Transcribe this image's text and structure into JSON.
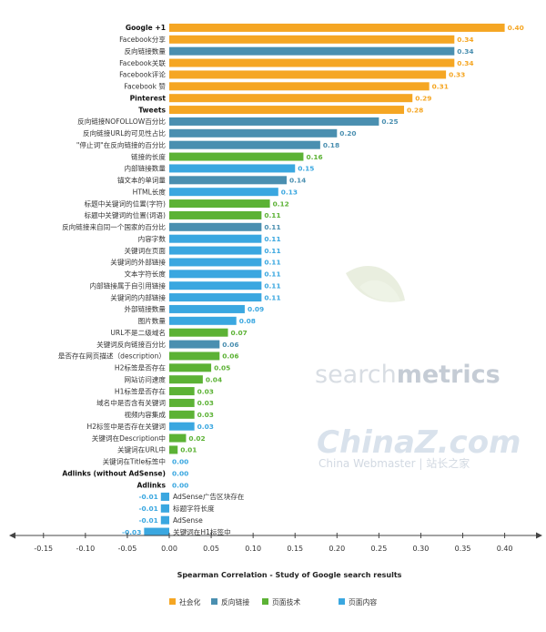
{
  "chart_data": {
    "type": "bar",
    "orientation": "horizontal",
    "title": "",
    "xlabel": "Spearman Correlation - Study of Google search results",
    "ylabel": "",
    "xlim": [
      -0.18,
      0.45
    ],
    "xticks": [
      -0.15,
      -0.1,
      -0.05,
      0.0,
      0.05,
      0.1,
      0.15,
      0.2,
      0.25,
      0.3,
      0.35,
      0.4
    ],
    "xtick_labels": [
      "-0.15",
      "-0.10",
      "-0.05",
      "0.00",
      "0.05",
      "0.10",
      "0.15",
      "0.20",
      "0.25",
      "0.30",
      "0.35",
      "0.40"
    ],
    "grid": false,
    "legend_position": "bottom",
    "series": [
      {
        "name": "社会化",
        "color": "#f5a623"
      },
      {
        "name": "反向链接",
        "color": "#4a8fb0"
      },
      {
        "name": "页面技术",
        "color": "#5cb235"
      },
      {
        "name": "页面内容",
        "color": "#3aa7e0"
      }
    ],
    "bars": [
      {
        "category": "Google +1",
        "value": 0.4,
        "label": "0.40",
        "series": 0,
        "bold": true
      },
      {
        "category": "Facebook分享",
        "value": 0.34,
        "label": "0.34",
        "series": 0
      },
      {
        "category": "反向链接数量",
        "value": 0.34,
        "label": "0.34",
        "series": 1
      },
      {
        "category": "Facebook关联",
        "value": 0.34,
        "label": "0.34",
        "series": 0
      },
      {
        "category": "Facebook评论",
        "value": 0.33,
        "label": "0.33",
        "series": 0
      },
      {
        "category": "Facebook 赞",
        "value": 0.31,
        "label": "0.31",
        "series": 0
      },
      {
        "category": "Pinterest",
        "value": 0.29,
        "label": "0.29",
        "series": 0,
        "bold": true
      },
      {
        "category": "Tweets",
        "value": 0.28,
        "label": "0.28",
        "series": 0,
        "bold": true
      },
      {
        "category": "反向链接NOFOLLOW百分比",
        "value": 0.25,
        "label": "0.25",
        "series": 1
      },
      {
        "category": "反向链接URL的可见性占比",
        "value": 0.2,
        "label": "0.20",
        "series": 1
      },
      {
        "category": "\"停止词\"在反向链接的百分比",
        "value": 0.18,
        "label": "0.18",
        "series": 1
      },
      {
        "category": "链接的长度",
        "value": 0.16,
        "label": "0.16",
        "series": 2
      },
      {
        "category": "内部链接数量",
        "value": 0.15,
        "label": "0.15",
        "series": 3
      },
      {
        "category": "锚文本的单词量",
        "value": 0.14,
        "label": "0.14",
        "series": 1
      },
      {
        "category": "HTML长度",
        "value": 0.13,
        "label": "0.13",
        "series": 3
      },
      {
        "category": "标题中关键词的位置(字符)",
        "value": 0.12,
        "label": "0.12",
        "series": 2
      },
      {
        "category": "标题中关键词的位置(词语)",
        "value": 0.11,
        "label": "0.11",
        "series": 2
      },
      {
        "category": "反向链接来自同一个国家的百分比",
        "value": 0.11,
        "label": "0.11",
        "series": 1
      },
      {
        "category": "内容字数",
        "value": 0.11,
        "label": "0.11",
        "series": 3
      },
      {
        "category": "关键词在页面",
        "value": 0.11,
        "label": "0.11",
        "series": 3
      },
      {
        "category": "关键词的外部链接",
        "value": 0.11,
        "label": "0.11",
        "series": 3
      },
      {
        "category": "文本字符长度",
        "value": 0.11,
        "label": "0.11",
        "series": 3
      },
      {
        "category": "内部链接属于自引用链接",
        "value": 0.11,
        "label": "0.11",
        "series": 3
      },
      {
        "category": "关键词的内部链接",
        "value": 0.11,
        "label": "0.11",
        "series": 3
      },
      {
        "category": "外部链接数量",
        "value": 0.09,
        "label": "0.09",
        "series": 3
      },
      {
        "category": "图片数量",
        "value": 0.08,
        "label": "0.08",
        "series": 3
      },
      {
        "category": "URL不是二级域名",
        "value": 0.07,
        "label": "0.07",
        "series": 2
      },
      {
        "category": "关键词反向链接百分比",
        "value": 0.06,
        "label": "0.06",
        "series": 1
      },
      {
        "category": "是否存在网页描述（description）",
        "value": 0.06,
        "label": "0.06",
        "series": 2
      },
      {
        "category": "H2标签是否存在",
        "value": 0.05,
        "label": "0.05",
        "series": 2
      },
      {
        "category": "网站访问速度",
        "value": 0.04,
        "label": "0.04",
        "series": 2
      },
      {
        "category": "H1标签是否存在",
        "value": 0.03,
        "label": "0.03",
        "series": 2
      },
      {
        "category": "域名中是否含有关键词",
        "value": 0.03,
        "label": "0.03",
        "series": 2
      },
      {
        "category": "视频内容集成",
        "value": 0.03,
        "label": "0.03",
        "series": 2
      },
      {
        "category": "H2标签中是否存在关键词",
        "value": 0.03,
        "label": "0.03",
        "series": 3
      },
      {
        "category": "关键词在Description中",
        "value": 0.02,
        "label": "0.02",
        "series": 2
      },
      {
        "category": "关键词在URL中",
        "value": 0.01,
        "label": "0.01",
        "series": 2
      },
      {
        "category": "关键词在Title标签中",
        "value": 0.0,
        "label": "0.00",
        "series": 3
      },
      {
        "category": "Adlinks (without AdSense)",
        "value": 0.0,
        "label": "0.00",
        "series": 3,
        "bold": true
      },
      {
        "category": "Adlinks",
        "value": 0.0,
        "label": "0.00",
        "series": 3,
        "bold": true
      },
      {
        "category": "AdSense广告区块存在",
        "value": -0.01,
        "label": "-0.01",
        "series": 3
      },
      {
        "category": "标题字符长度",
        "value": -0.01,
        "label": "-0.01",
        "series": 3
      },
      {
        "category": "AdSense",
        "value": -0.01,
        "label": "-0.01",
        "series": 3
      },
      {
        "category": "关键词在H1标签中",
        "value": -0.03,
        "label": "-0.03",
        "series": 3
      }
    ]
  },
  "watermarks": {
    "searchmetrics_a": "search",
    "searchmetrics_b": "metrics",
    "china_a": "China",
    "china_b": "Z",
    "china_c": ".com",
    "china_sub": "China Webmaster  |  站长之家"
  }
}
